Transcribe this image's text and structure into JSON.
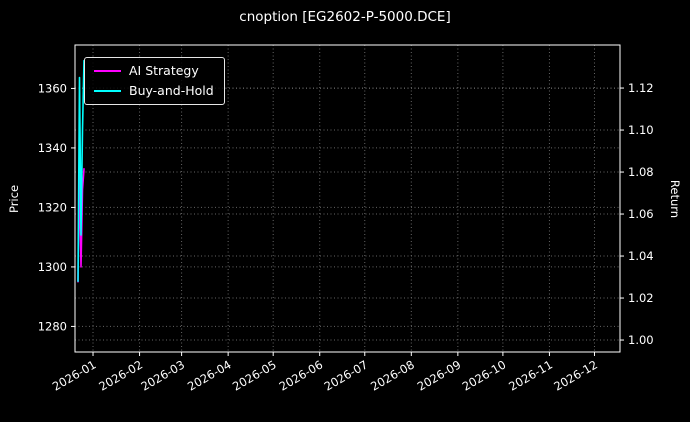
{
  "title": "cnoption [EG2602-P-5000.DCE]",
  "colors": {
    "background": "#000000",
    "text": "#ffffff",
    "grid": "#666666",
    "spine": "#ffffff",
    "ai_strategy": "#ff00ff",
    "buy_and_hold": "#00ffff"
  },
  "legend": {
    "items": [
      {
        "label": "AI Strategy",
        "color": "#ff00ff"
      },
      {
        "label": "Buy-and-Hold",
        "color": "#00ffff"
      }
    ]
  },
  "axes": {
    "left_label": "Price",
    "right_label": "Return",
    "left_ticks": [
      1280,
      1300,
      1320,
      1340,
      1360
    ],
    "right_ticks": [
      1.0,
      1.02,
      1.04,
      1.06,
      1.08,
      1.1,
      1.12
    ],
    "x_ticks": [
      "2026-01",
      "2026-02",
      "2026-03",
      "2026-04",
      "2026-05",
      "2026-06",
      "2026-07",
      "2026-08",
      "2026-09",
      "2026-10",
      "2026-11",
      "2026-12"
    ]
  },
  "chart_data": {
    "type": "line",
    "title": "cnoption [EG2602-P-5000.DCE]",
    "xlabel": "",
    "ylabel_left": "Price",
    "ylabel_right": "Return",
    "grid": true,
    "legend_position": "upper left",
    "x": [
      "2025-12-22",
      "2025-12-23",
      "2025-12-24",
      "2025-12-25",
      "2025-12-26"
    ],
    "x_range": [
      "2025-12-20",
      "2026-12-18"
    ],
    "left_ylim": [
      1271.4,
      1374.6
    ],
    "right_ylim": [
      0.9943,
      1.1405
    ],
    "series": [
      {
        "name": "AI Strategy",
        "axis": "left",
        "color": "#ff00ff",
        "values": [
          1295,
          1331,
          1300,
          1326,
          1333
        ]
      },
      {
        "name": "Buy-and-Hold",
        "axis": "right",
        "color": "#00ffff",
        "values": [
          1.028,
          1.125,
          1.05,
          1.1,
          1.133
        ]
      }
    ]
  }
}
